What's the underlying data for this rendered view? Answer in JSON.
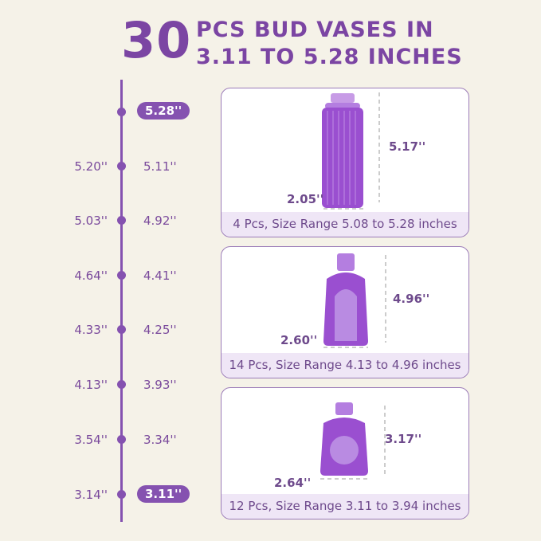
{
  "title": {
    "number": "30",
    "line1": "PCS BUD VASES IN",
    "line2": "3.11 TO 5.28 INCHES"
  },
  "timeline": {
    "top_pill": "5.28''",
    "bottom_pill": "3.11''",
    "rows": [
      {
        "left": "5.20''",
        "right": "5.11''"
      },
      {
        "left": "5.03''",
        "right": "4.92''"
      },
      {
        "left": "4.64''",
        "right": "4.41''"
      },
      {
        "left": "4.33''",
        "right": "4.25''"
      },
      {
        "left": "4.13''",
        "right": "3.93''"
      },
      {
        "left": "3.54''",
        "right": "3.34''"
      },
      {
        "left": "3.14''"
      }
    ]
  },
  "cards": [
    {
      "height": "5.17''",
      "width": "2.05''",
      "caption": "4 Pcs, Size Range 5.08 to 5.28 inches"
    },
    {
      "height": "4.96''",
      "width": "2.60''",
      "caption": "14 Pcs, Size Range 4.13 to 4.96 inches"
    },
    {
      "height": "3.17''",
      "width": "2.64''",
      "caption": "12 Pcs, Size Range 3.11 to 3.94 inches"
    }
  ],
  "colors": {
    "accent": "#8552b0",
    "background": "#f5f2e8",
    "vase": "#9a4fd0"
  }
}
